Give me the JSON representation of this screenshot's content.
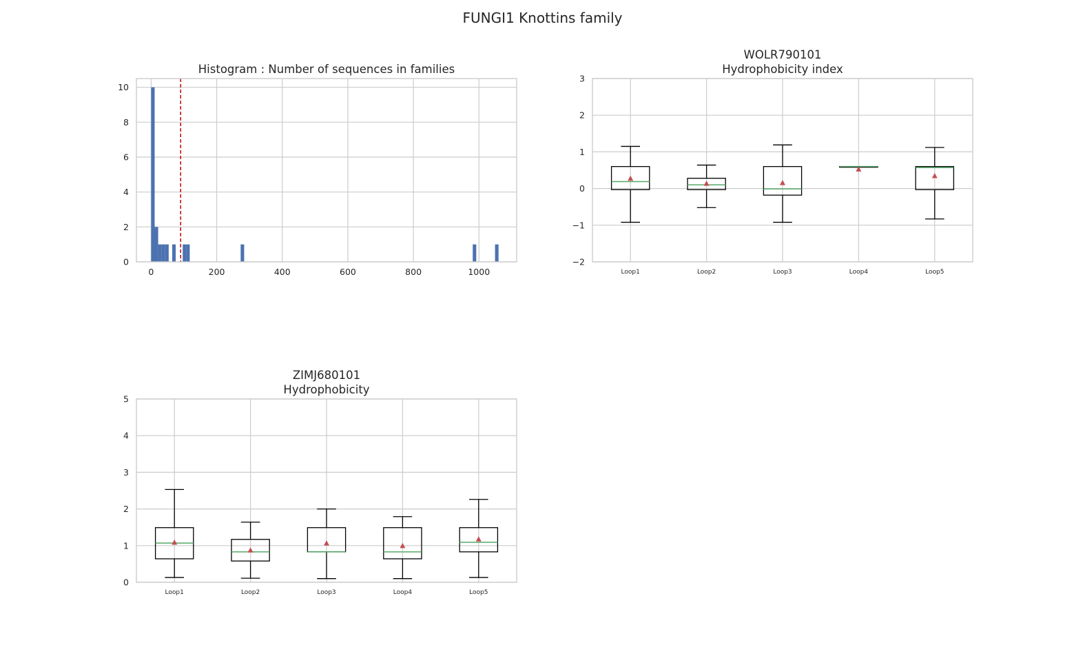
{
  "suptitle": "FUNGI1 Knottins family",
  "colors": {
    "bar": "#4c72b0",
    "threshold": "#c00000",
    "median": "#55a868",
    "mean": "#c44e52",
    "box": "#000000",
    "grid": "#cccccc"
  },
  "chart_data": [
    {
      "type": "bar",
      "title": "Histogram : Number of sequences in families",
      "xlim": [
        -45,
        1115
      ],
      "ylim": [
        0,
        10.5
      ],
      "xticks": [
        "0",
        "200",
        "400",
        "600",
        "800",
        "1000"
      ],
      "xtick_values": [
        0,
        200,
        400,
        600,
        800,
        1000
      ],
      "yticks": [
        "0",
        "2",
        "4",
        "6",
        "8",
        "10"
      ],
      "ytick_values": [
        0,
        2,
        4,
        6,
        8,
        10
      ],
      "bin_width": 10.7,
      "bins": [
        {
          "x": 0,
          "value": 10
        },
        {
          "x": 10.7,
          "value": 2
        },
        {
          "x": 21.4,
          "value": 1
        },
        {
          "x": 32.1,
          "value": 1
        },
        {
          "x": 42.8,
          "value": 1
        },
        {
          "x": 64.2,
          "value": 1
        },
        {
          "x": 96.3,
          "value": 1
        },
        {
          "x": 107,
          "value": 1
        },
        {
          "x": 273,
          "value": 1
        },
        {
          "x": 981,
          "value": 1
        },
        {
          "x": 1049,
          "value": 1
        }
      ],
      "threshold_x": 90
    },
    {
      "type": "box",
      "title": [
        "WOLR790101",
        "Hydrophobicity index"
      ],
      "ylim": [
        -2,
        3
      ],
      "yticks": [
        "−2",
        "−1",
        "0",
        "1",
        "2",
        "3"
      ],
      "ytick_values": [
        -2,
        -1,
        0,
        1,
        2,
        3
      ],
      "categories": [
        "Loop1",
        "Loop2",
        "Loop3",
        "Loop4",
        "Loop5"
      ],
      "boxes": [
        {
          "whislo": -0.92,
          "q1": -0.03,
          "med": 0.19,
          "q3": 0.6,
          "whishi": 1.15,
          "mean": 0.27
        },
        {
          "whislo": -0.52,
          "q1": -0.03,
          "med": 0.1,
          "q3": 0.28,
          "whishi": 0.64,
          "mean": 0.13
        },
        {
          "whislo": -0.92,
          "q1": -0.18,
          "med": -0.01,
          "q3": 0.6,
          "whishi": 1.19,
          "mean": 0.15
        },
        {
          "whislo": 0.6,
          "q1": 0.6,
          "med": 0.6,
          "q3": 0.6,
          "whishi": 0.6,
          "mean": 0.52
        },
        {
          "whislo": -0.83,
          "q1": -0.03,
          "med": 0.57,
          "q3": 0.6,
          "whishi": 1.12,
          "mean": 0.34
        }
      ]
    },
    {
      "type": "box",
      "title": [
        "ZIMJ680101",
        "Hydrophobicity"
      ],
      "ylim": [
        0,
        5
      ],
      "yticks": [
        "0",
        "1",
        "2",
        "3",
        "4",
        "5"
      ],
      "ytick_values": [
        0,
        1,
        2,
        3,
        4,
        5
      ],
      "categories": [
        "Loop1",
        "Loop2",
        "Loop3",
        "Loop4",
        "Loop5"
      ],
      "boxes": [
        {
          "whislo": 0.13,
          "q1": 0.64,
          "med": 1.07,
          "q3": 1.49,
          "whishi": 2.53,
          "mean": 1.08
        },
        {
          "whislo": 0.11,
          "q1": 0.58,
          "med": 0.83,
          "q3": 1.17,
          "whishi": 1.64,
          "mean": 0.87
        },
        {
          "whislo": 0.1,
          "q1": 0.83,
          "med": 0.83,
          "q3": 1.49,
          "whishi": 2.0,
          "mean": 1.06
        },
        {
          "whislo": 0.1,
          "q1": 0.64,
          "med": 0.83,
          "q3": 1.49,
          "whishi": 1.79,
          "mean": 0.99
        },
        {
          "whislo": 0.13,
          "q1": 0.83,
          "med": 1.09,
          "q3": 1.49,
          "whishi": 2.26,
          "mean": 1.17
        }
      ]
    }
  ]
}
